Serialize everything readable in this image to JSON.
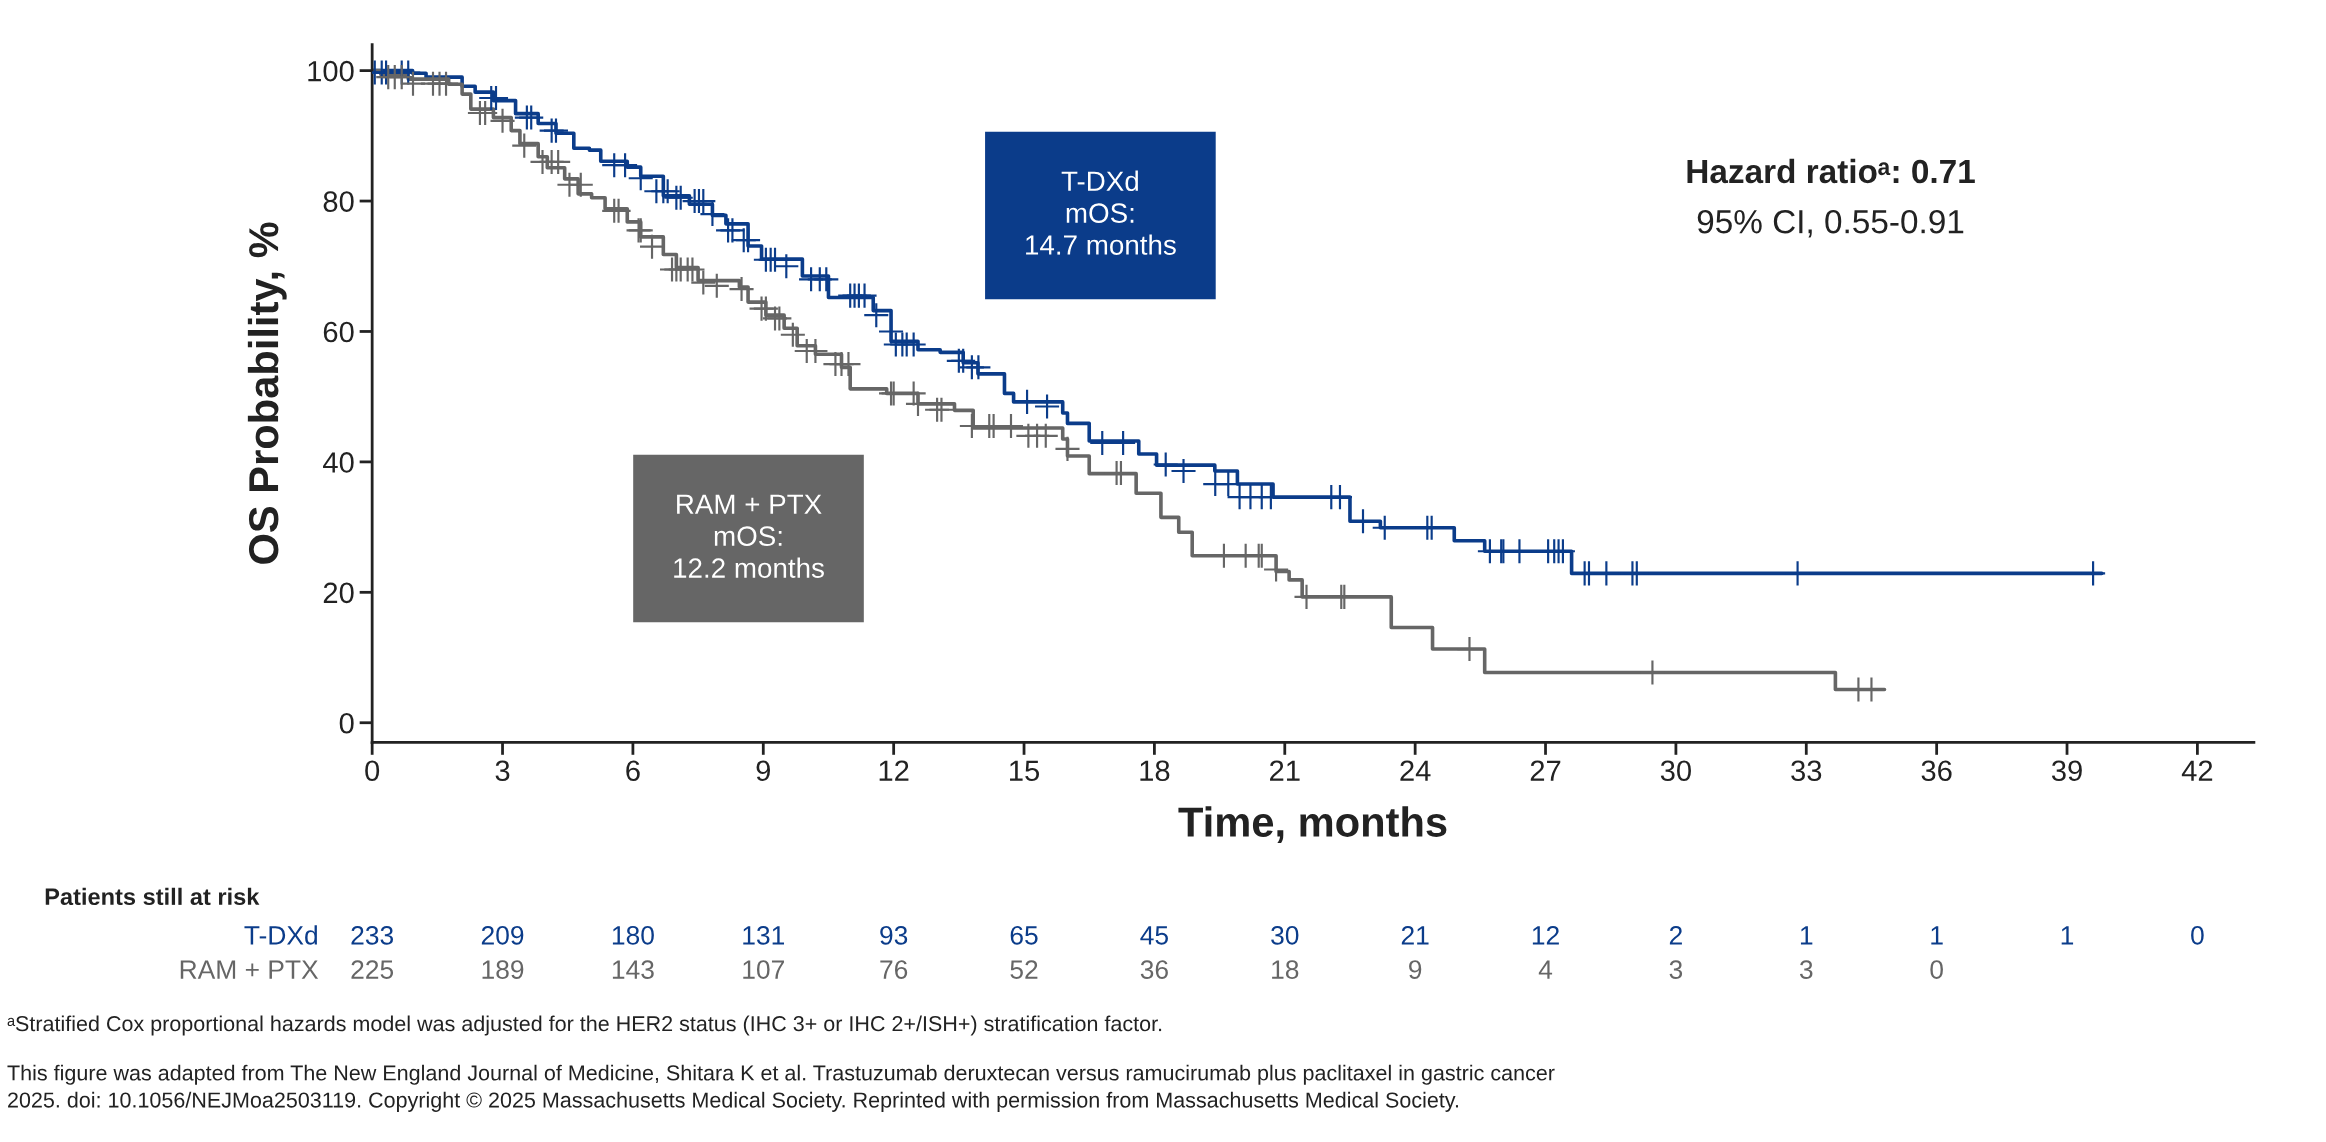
{
  "chart_data": {
    "type": "step",
    "xlabel": "Time, months",
    "ylabel": "OS Probability, %",
    "xlim": [
      0,
      43.3
    ],
    "ylim": [
      -3,
      104
    ],
    "xticks": [
      0,
      3,
      6,
      9,
      12,
      15,
      18,
      21,
      24,
      27,
      30,
      33,
      36,
      39,
      42
    ],
    "yticks": [
      0,
      20,
      40,
      60,
      80,
      100
    ],
    "grid": false,
    "legend": false,
    "series": [
      {
        "color": "#0b3c8a",
        "x": [
          0,
          0.93,
          1.24,
          2.07,
          2.37,
          2.79,
          3.3,
          3.82,
          4.23,
          4.64,
          5.0,
          5.26,
          5.87,
          6.18,
          6.7,
          7.3,
          7.83,
          8.14,
          8.65,
          8.96,
          9.9,
          10.5,
          11.53,
          11.94,
          12.56,
          13.07,
          13.6,
          13.94,
          14.55,
          14.76,
          15.89,
          16.0,
          16.5,
          17.64,
          18.05,
          19.39,
          19.91,
          20.73,
          22.5,
          23.2,
          24.9,
          25.6,
          27.6,
          39.8
        ],
        "values": [
          100,
          99.6,
          99,
          97.6,
          96.7,
          95.4,
          93.4,
          91.9,
          90.4,
          88.1,
          87.8,
          86.1,
          85.2,
          83.8,
          80.8,
          79.5,
          77.8,
          76.5,
          73.1,
          71.1,
          68.5,
          65.2,
          63.2,
          58.5,
          57.2,
          56.8,
          55.2,
          53.5,
          50.5,
          49.2,
          47.5,
          45.9,
          43.2,
          41.2,
          39.5,
          38.6,
          36.6,
          34.6,
          30.9,
          29.9,
          27.9,
          26.3,
          22.9,
          22.9
        ]
      },
      {
        "color": "#666666",
        "x": [
          0,
          0.2,
          0.83,
          1.76,
          2.07,
          2.27,
          2.79,
          3.2,
          3.4,
          3.82,
          4.03,
          4.43,
          4.74,
          5.05,
          5.36,
          5.87,
          6.18,
          6.7,
          7.0,
          7.5,
          8.45,
          8.65,
          9.06,
          9.48,
          9.78,
          10.2,
          10.8,
          11.0,
          11.84,
          12.56,
          13.4,
          13.83,
          15.89,
          16.0,
          16.5,
          17.58,
          18.15,
          18.56,
          18.87,
          20.8,
          21.1,
          21.4,
          23.45,
          24.4,
          25.6,
          33.67,
          34.8
        ],
        "values": [
          100,
          99.4,
          98.7,
          97.9,
          96.4,
          94.1,
          92.8,
          90.8,
          88.8,
          86.8,
          85.1,
          83.4,
          81.1,
          80.5,
          78.8,
          76.8,
          74.5,
          71.8,
          69.8,
          67.8,
          66.8,
          64.5,
          62.5,
          60.5,
          57.8,
          56.5,
          54.5,
          51.2,
          50.5,
          48.9,
          47.9,
          45.2,
          43.5,
          40.9,
          38.2,
          35.2,
          31.5,
          29.2,
          25.6,
          23.2,
          21.9,
          19.3,
          14.6,
          11.3,
          7.7,
          5.1,
          5.1
        ]
      },
      {
        "type": "scatter",
        "marker": "cross",
        "color": "#0b3c8a",
        "x": [
          0.06,
          0.22,
          0.32,
          0.68,
          0.83,
          2.74,
          2.85,
          3.56,
          3.66,
          4.13,
          4.23,
          5.57,
          5.82,
          6.18,
          6.54,
          6.7,
          6.8,
          7.0,
          7.1,
          7.42,
          7.52,
          7.62,
          7.83,
          8.19,
          8.29,
          8.55,
          8.65,
          9.06,
          9.17,
          9.27,
          9.53,
          10.1,
          10.3,
          10.45,
          11.0,
          11.1,
          11.2,
          11.33,
          11.6,
          11.94,
          12.05,
          12.2,
          12.3,
          12.46,
          13.5,
          13.6,
          13.8,
          13.95,
          15.07,
          15.53,
          16.8,
          17.28,
          18.26,
          18.67,
          19.4,
          19.7,
          19.96,
          20.21,
          20.47,
          20.68,
          22.07,
          22.27,
          22.8,
          23.3,
          24.28,
          24.38,
          25.72,
          25.98,
          26.03,
          26.4,
          27.06,
          27.2,
          27.3,
          27.4,
          27.9,
          28.0,
          28.4,
          29.0,
          29.1,
          32.8,
          39.6
        ],
        "values": [
          99.7,
          99.7,
          99.7,
          99.7,
          99.7,
          95.8,
          95.8,
          92.8,
          92.8,
          90.8,
          90.8,
          85.5,
          85.5,
          83.5,
          81.5,
          81.5,
          81.5,
          80.5,
          80.5,
          80,
          80,
          80,
          78,
          75.5,
          75.5,
          74,
          74,
          71,
          71,
          71,
          70,
          68,
          68,
          68,
          65.5,
          65.5,
          65.5,
          65.5,
          62.5,
          60,
          58,
          58,
          58,
          58,
          55.5,
          55.5,
          54.5,
          54.5,
          49.2,
          48.5,
          42.9,
          42.9,
          39.6,
          38.6,
          36.6,
          36.6,
          34.6,
          34.6,
          34.6,
          34.6,
          34.6,
          34.6,
          30.9,
          29.9,
          29.9,
          29.9,
          26.3,
          26.3,
          26.3,
          26.3,
          26.3,
          26.3,
          26.3,
          26.3,
          22.9,
          22.9,
          22.9,
          22.9,
          22.9,
          22.9,
          22.9
        ]
      },
      {
        "type": "scatter",
        "marker": "cross",
        "color": "#666666",
        "x": [
          0.37,
          0.52,
          0.68,
          0.94,
          1.4,
          1.55,
          1.7,
          2.48,
          2.6,
          3.0,
          3.5,
          3.92,
          4.13,
          4.28,
          4.54,
          4.8,
          5.57,
          5.67,
          6.13,
          6.18,
          6.44,
          6.9,
          7.0,
          7.1,
          7.26,
          7.37,
          7.62,
          7.93,
          8.5,
          8.96,
          9.06,
          9.27,
          9.37,
          9.68,
          10.0,
          10.2,
          10.66,
          10.8,
          10.96,
          11.94,
          12.0,
          12.46,
          12.56,
          13.0,
          13.1,
          13.8,
          14.2,
          14.3,
          14.7,
          15.1,
          15.3,
          15.5,
          16.0,
          17.13,
          17.23,
          19.6,
          20.1,
          20.4,
          20.47,
          20.8,
          21.5,
          22.3,
          22.37,
          25.25,
          29.46,
          34.2,
          34.5
        ],
        "values": [
          99,
          99,
          99,
          98,
          98,
          98,
          98,
          93.5,
          93.5,
          92.3,
          88.5,
          86,
          86,
          86,
          82.5,
          82.5,
          78.5,
          78.5,
          75.5,
          75.5,
          73,
          69.5,
          69.5,
          69.5,
          69.5,
          69.5,
          67.5,
          67,
          66.5,
          63.5,
          63.5,
          62,
          62,
          59.5,
          57,
          57,
          55,
          55,
          55,
          50.5,
          50.5,
          50.5,
          48.9,
          48,
          48,
          45.5,
          45.5,
          45.5,
          45.5,
          44,
          44,
          44,
          42,
          38.3,
          38.3,
          25.6,
          25.6,
          25.6,
          25.6,
          23.5,
          19.3,
          19.3,
          19.3,
          11.3,
          7.7,
          5.1,
          5.1
        ]
      }
    ],
    "annotations": [
      "Hazard ratioᵃ: 0.71",
      "95% CI, 0.55-0.91",
      "T-DXd\nmOS:\n14.7 months",
      "RAM + PTX\nmOS:\n12.2 months",
      "Patients still at risk",
      "T-DXd",
      "233",
      "209",
      "180",
      "131",
      "93",
      "65",
      "45",
      "30",
      "21",
      "12",
      "2",
      "1",
      "1",
      "1",
      "0",
      "RAM + PTX",
      "225",
      "189",
      "143",
      "107",
      "76",
      "52",
      "36",
      "18",
      "9",
      "4",
      "3",
      "3",
      "0",
      "ᵃStratified Cox proportional hazards model was adjusted for the HER2 status (IHC 3+ or IHC 2+/ISH+) stratification factor.",
      "This figure was adapted from The New England Journal of Medicine, Shitara K et al. Trastuzumab deruxtecan versus ramucirumab plus paclitaxel in gastric cancer\n2025. doi: 10.1056/NEJMoa2503119. Copyright © 2025 Massachusetts Medical Society. Reprinted with permission from Massachusetts Medical Society."
    ]
  }
}
